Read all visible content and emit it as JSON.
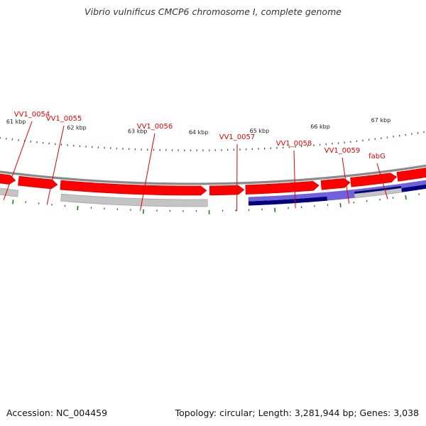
{
  "title": "Vibrio vulnificus CMCP6 chromosome I, complete genome",
  "footer": {
    "accession": "Accession: NC_004459",
    "summary": "Topology: circular; Length: 3,281,944 bp; Genes: 3,038"
  },
  "colors": {
    "cds": "#ff0000",
    "cds_edge": "#c40000",
    "gene_gray": "#c4c4c4",
    "gene_gray_dark": "#a6a6a6",
    "gene_navy": "#00007a",
    "gene_lavender": "#7060dc",
    "gene_steelblue": "#3f7fc0",
    "backbone": "#8a8a8a",
    "tick": "#1e7a1e",
    "label": "#e00000",
    "kbp_text": "#222222"
  },
  "scale_labels": [
    "61 kbp",
    "62 kbp",
    "63 kbp",
    "64 kbp",
    "65 kbp",
    "66 kbp",
    "67 kbp"
  ],
  "gene_labels": [
    "VV1_0054",
    "VV1_0055",
    "VV1_0056",
    "VV1_0057",
    "VV1_0058",
    "VV1_0059",
    "fabG"
  ]
}
